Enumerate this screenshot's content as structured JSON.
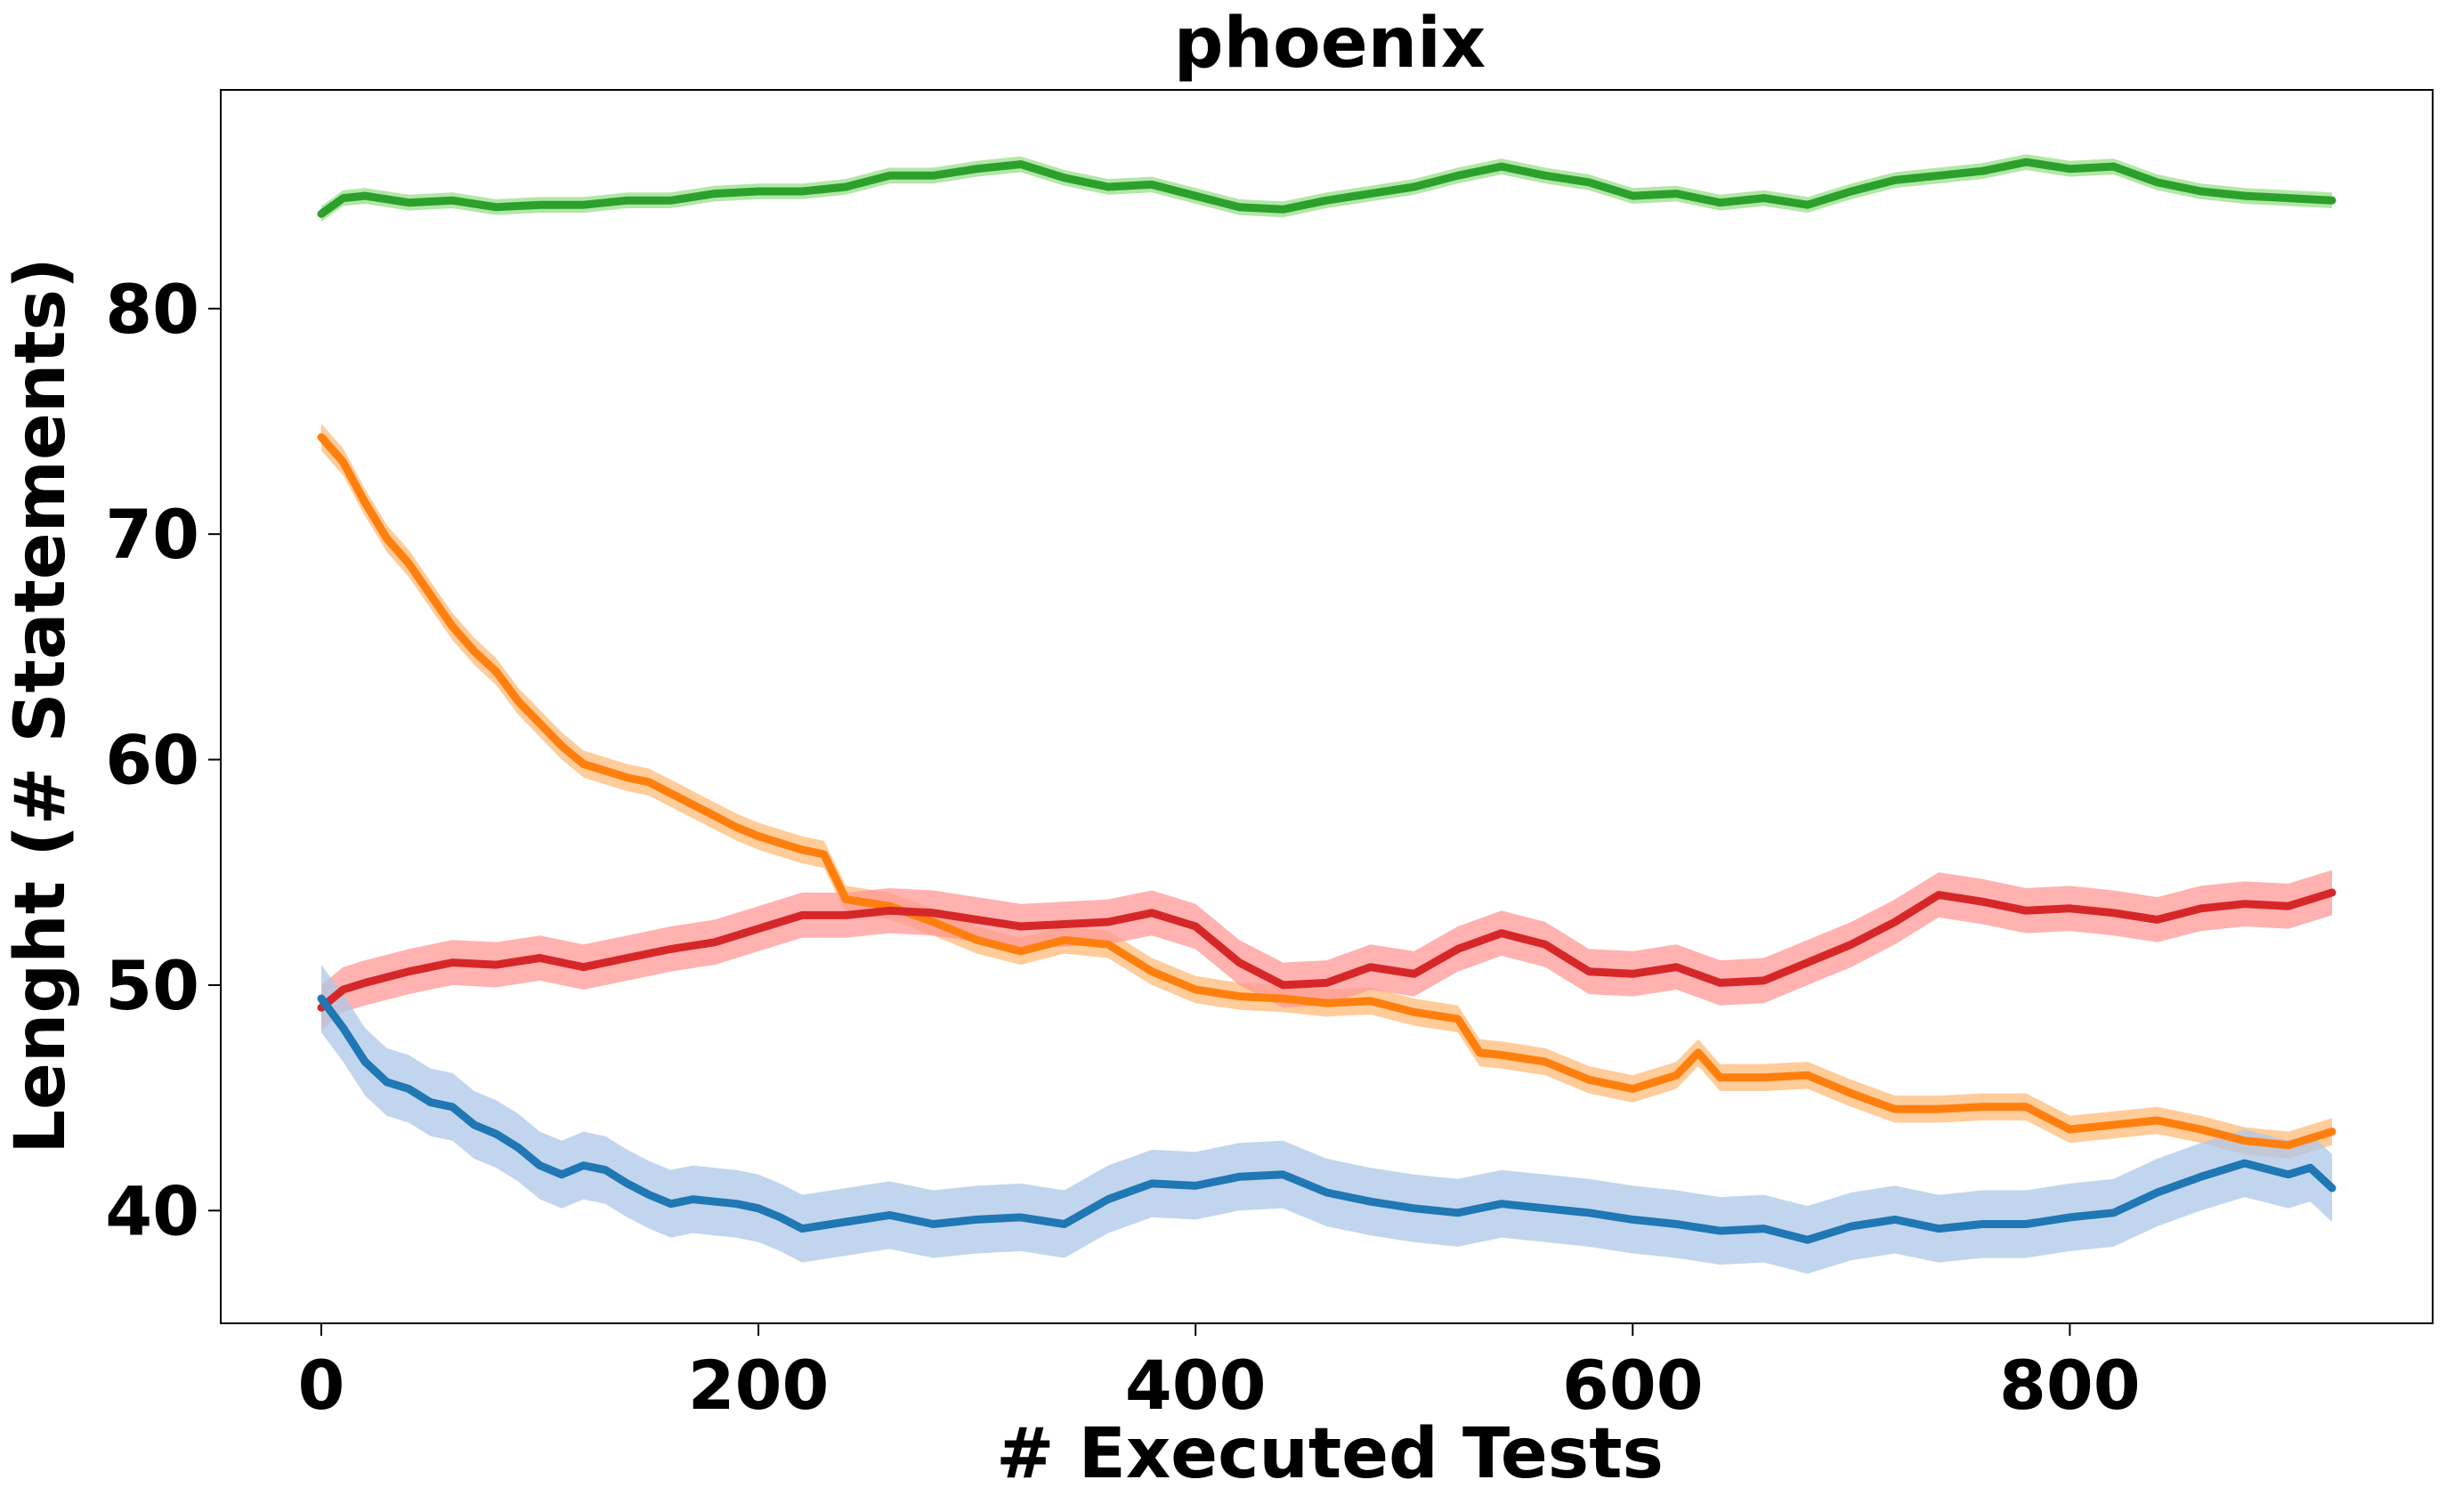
{
  "chart_data": {
    "type": "line",
    "title": "phoenix",
    "xlabel": "# Executed Tests",
    "ylabel": "Lenght (# Statements)",
    "xlim": [
      -46,
      966
    ],
    "ylim": [
      35,
      89.7
    ],
    "xticks": [
      0,
      200,
      400,
      600,
      800
    ],
    "yticks": [
      40,
      50,
      60,
      70,
      80
    ],
    "grid": false,
    "legend": "none",
    "shaded_band": "confidence interval around each line",
    "series": [
      {
        "color": "#2ca02c",
        "band_color": "#98df8a",
        "x": [
          0,
          10,
          20,
          40,
          60,
          80,
          100,
          120,
          140,
          160,
          180,
          200,
          220,
          240,
          260,
          280,
          300,
          320,
          340,
          360,
          380,
          400,
          420,
          440,
          460,
          480,
          500,
          520,
          540,
          560,
          580,
          600,
          620,
          640,
          660,
          680,
          700,
          720,
          740,
          760,
          780,
          800,
          820,
          840,
          860,
          880,
          900,
          920
        ],
        "y": [
          84.2,
          84.9,
          85.0,
          84.7,
          84.8,
          84.5,
          84.6,
          84.6,
          84.8,
          84.8,
          85.1,
          85.2,
          85.2,
          85.4,
          85.9,
          85.9,
          86.2,
          86.4,
          85.8,
          85.4,
          85.5,
          85.0,
          84.5,
          84.4,
          84.8,
          85.1,
          85.4,
          85.9,
          86.3,
          85.9,
          85.6,
          85.0,
          85.1,
          84.7,
          84.9,
          84.6,
          85.2,
          85.7,
          85.9,
          86.1,
          86.5,
          86.2,
          86.3,
          85.6,
          85.2,
          85.0,
          84.9,
          84.8
        ],
        "band": 0.35
      },
      {
        "color": "#ff7f0e",
        "band_color": "#ffbb78",
        "x": [
          0,
          10,
          20,
          30,
          40,
          50,
          60,
          70,
          80,
          90,
          100,
          110,
          120,
          130,
          140,
          150,
          160,
          170,
          180,
          190,
          200,
          210,
          220,
          230,
          240,
          260,
          280,
          300,
          320,
          340,
          360,
          380,
          400,
          420,
          440,
          460,
          480,
          500,
          520,
          530,
          540,
          560,
          580,
          600,
          620,
          630,
          640,
          660,
          680,
          700,
          720,
          740,
          760,
          780,
          800,
          820,
          840,
          860,
          880,
          900,
          920
        ],
        "y": [
          74.3,
          73.2,
          71.4,
          69.8,
          68.7,
          67.3,
          65.9,
          64.8,
          63.9,
          62.6,
          61.6,
          60.6,
          59.8,
          59.5,
          59.2,
          59.0,
          58.5,
          58.0,
          57.5,
          57.0,
          56.6,
          56.3,
          56.0,
          55.8,
          53.8,
          53.5,
          52.8,
          52.0,
          51.5,
          52.0,
          51.8,
          50.6,
          49.8,
          49.5,
          49.4,
          49.2,
          49.3,
          48.8,
          48.5,
          47.0,
          46.9,
          46.6,
          45.8,
          45.4,
          46.0,
          47.0,
          45.9,
          45.9,
          46.0,
          45.2,
          44.5,
          44.5,
          44.6,
          44.6,
          43.6,
          43.8,
          44.0,
          43.6,
          43.1,
          42.9,
          43.5
        ],
        "band": 0.6
      },
      {
        "color": "#d62728",
        "band_color": "#ff9896",
        "x": [
          0,
          10,
          20,
          40,
          60,
          80,
          100,
          120,
          140,
          160,
          180,
          200,
          220,
          240,
          260,
          280,
          300,
          320,
          340,
          360,
          380,
          400,
          420,
          440,
          460,
          480,
          500,
          520,
          540,
          560,
          580,
          600,
          620,
          640,
          660,
          680,
          700,
          720,
          740,
          760,
          780,
          800,
          820,
          840,
          860,
          880,
          900,
          920
        ],
        "y": [
          49.0,
          49.8,
          50.1,
          50.6,
          51.0,
          50.9,
          51.2,
          50.8,
          51.2,
          51.6,
          51.9,
          52.5,
          53.1,
          53.1,
          53.3,
          53.2,
          52.9,
          52.6,
          52.7,
          52.8,
          53.2,
          52.6,
          51.0,
          50.0,
          50.1,
          50.8,
          50.5,
          51.6,
          52.3,
          51.8,
          50.6,
          50.5,
          50.8,
          50.1,
          50.2,
          51.0,
          51.8,
          52.8,
          54.0,
          53.7,
          53.3,
          53.4,
          53.2,
          52.9,
          53.4,
          53.6,
          53.5,
          54.1
        ],
        "band": 1.0
      },
      {
        "color": "#1f77b4",
        "band_color": "#aec7e8",
        "x": [
          0,
          10,
          20,
          30,
          40,
          50,
          60,
          70,
          80,
          90,
          100,
          110,
          120,
          130,
          140,
          150,
          160,
          170,
          180,
          190,
          200,
          210,
          220,
          240,
          260,
          280,
          300,
          320,
          340,
          360,
          380,
          400,
          420,
          440,
          460,
          480,
          500,
          520,
          540,
          560,
          580,
          600,
          620,
          640,
          660,
          680,
          700,
          720,
          740,
          760,
          780,
          800,
          820,
          840,
          860,
          880,
          900,
          910,
          920
        ],
        "y": [
          49.4,
          48.1,
          46.6,
          45.7,
          45.4,
          44.8,
          44.6,
          43.8,
          43.4,
          42.8,
          42.0,
          41.6,
          42.0,
          41.8,
          41.2,
          40.7,
          40.3,
          40.5,
          40.4,
          40.3,
          40.1,
          39.7,
          39.2,
          39.5,
          39.8,
          39.4,
          39.6,
          39.7,
          39.4,
          40.5,
          41.2,
          41.1,
          41.5,
          41.6,
          40.8,
          40.4,
          40.1,
          39.9,
          40.3,
          40.1,
          39.9,
          39.6,
          39.4,
          39.1,
          39.2,
          38.7,
          39.3,
          39.6,
          39.2,
          39.4,
          39.4,
          39.7,
          39.9,
          40.8,
          41.5,
          42.1,
          41.6,
          41.9,
          41.0
        ],
        "band": 1.5
      }
    ]
  }
}
